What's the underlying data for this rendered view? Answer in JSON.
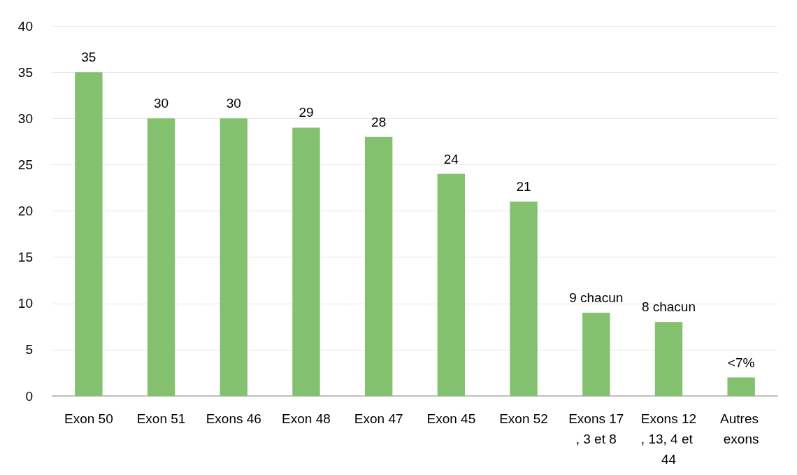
{
  "chart_data": {
    "type": "bar",
    "categories": [
      "Exon 50",
      "Exon 51",
      "Exons 46",
      "Exon 48",
      "Exon 47",
      "Exon 45",
      "Exon 52",
      "Exons 17, 3 et 8",
      "Exons 12, 13, 4 et 44",
      "Autres exons"
    ],
    "values": [
      35,
      30,
      30,
      29,
      28,
      24,
      21,
      9,
      8,
      2
    ],
    "value_labels": [
      "35",
      "30",
      "30",
      "29",
      "28",
      "24",
      "21",
      "9 chacun",
      "8 chacun",
      "<7%"
    ],
    "color": "#84c16e",
    "ylim": [
      0,
      40
    ],
    "yticks": [
      0,
      5,
      10,
      15,
      20,
      25,
      30,
      35,
      40
    ],
    "grid": "y"
  }
}
